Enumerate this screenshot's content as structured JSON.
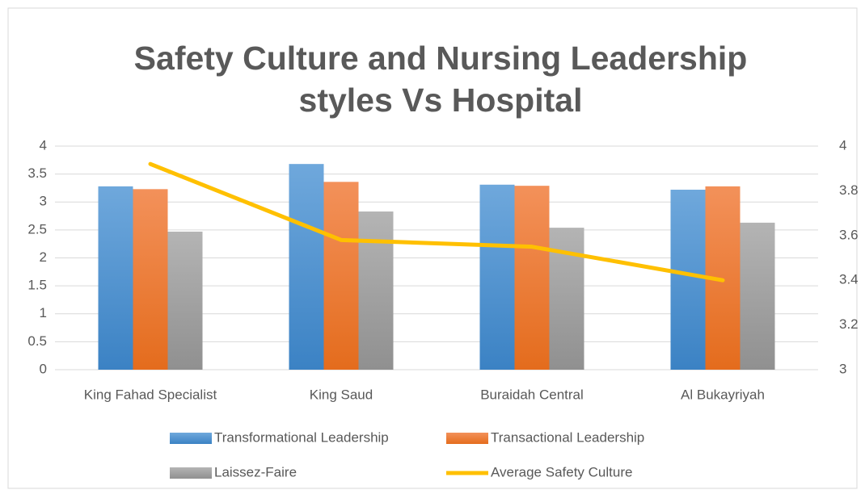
{
  "chart_data": {
    "type": "bar_line",
    "title": [
      "Safety Culture and Nursing Leadership",
      "styles Vs Hospital"
    ],
    "categories": [
      "King Fahad Specialist",
      "King Saud",
      "Buraidah Central",
      "Al Bukayriyah"
    ],
    "series": [
      {
        "name": "Transformational Leadership",
        "color": "#5b9bd5",
        "type": "bar",
        "values": [
          3.28,
          3.68,
          3.31,
          3.22
        ]
      },
      {
        "name": "Transactional Leadership",
        "color": "#ed7d31",
        "type": "bar",
        "values": [
          3.23,
          3.36,
          3.29,
          3.28
        ]
      },
      {
        "name": "Laissez-Faire",
        "color": "#a5a5a5",
        "type": "bar",
        "values": [
          2.47,
          2.83,
          2.54,
          2.63
        ]
      },
      {
        "name": "Average Safety Culture",
        "color": "#ffc000",
        "type": "line",
        "axis": "y2",
        "values": [
          3.92,
          3.58,
          3.55,
          3.4
        ]
      }
    ],
    "ylim": [
      0,
      4
    ],
    "yticks": [
      0,
      0.5,
      1,
      1.5,
      2,
      2.5,
      3,
      3.5,
      4
    ],
    "y2lim": [
      3,
      4
    ],
    "y2ticks": [
      3,
      3.2,
      3.4,
      3.6,
      3.8,
      4
    ],
    "grid": true,
    "legend": "bottom"
  }
}
